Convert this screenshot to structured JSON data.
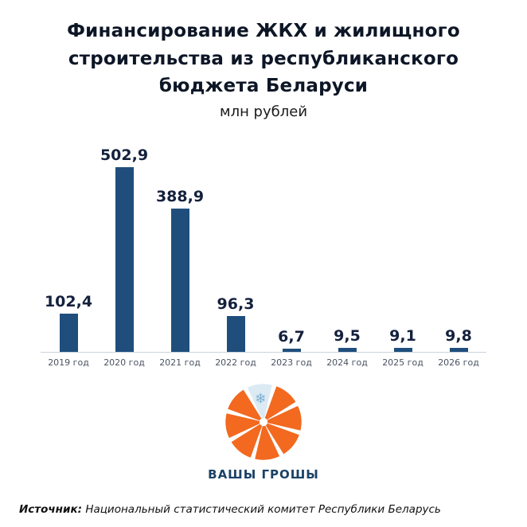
{
  "header": {
    "title": "Финансирование ЖКХ и жилищного строительства из республиканского бюджета Беларуси",
    "subtitle": "млн рублей"
  },
  "chart_data": {
    "type": "bar",
    "categories": [
      "2019 год",
      "2020 год",
      "2021 год",
      "2022 год",
      "2023 год",
      "2024 год",
      "2025 год",
      "2026 год"
    ],
    "values": [
      102.4,
      502.9,
      388.9,
      96.3,
      6.7,
      9.5,
      9.1,
      9.8
    ],
    "value_labels": [
      "102,4",
      "502,9",
      "388,9",
      "96,3",
      "6,7",
      "9,5",
      "9,1",
      "9,8"
    ],
    "title": "Финансирование ЖКХ и жилищного строительства из республиканского бюджета Беларуси",
    "xlabel": "",
    "ylabel": "млн рублей",
    "ylim": [
      0,
      510
    ],
    "grid": false,
    "legend": false,
    "bar_color": "#1f4e7c"
  },
  "logo": {
    "text": "ВАШЫ ГРОШЫ",
    "orange": "#f2691f",
    "sector_blue": "#dceaf4",
    "snowflake_color": "#7fb0d0",
    "snowflake_glyph": "❄",
    "text_color": "#1b4266"
  },
  "footer": {
    "source_label": "Источник:",
    "source_text": " Национальный статистический комитет Республики Беларусь"
  }
}
